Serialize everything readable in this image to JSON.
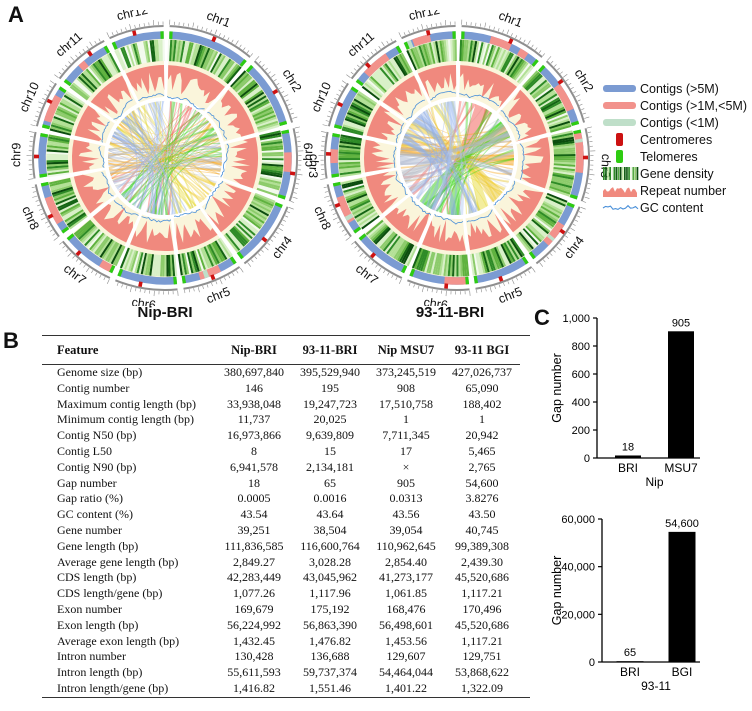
{
  "panels": {
    "a_label": "A",
    "b_label": "B",
    "c_label": "C"
  },
  "circos": {
    "chromosomes": [
      "chr1",
      "chr2",
      "chr3",
      "chr4",
      "chr5",
      "chr6",
      "chr7",
      "chr8",
      "chr9",
      "chr10",
      "chr11",
      "chr12"
    ],
    "plots": [
      {
        "title": "Nip-BRI"
      },
      {
        "title": "93-11-BRI"
      }
    ]
  },
  "legend": {
    "items": [
      {
        "name": "contigs-large",
        "label": "Contigs (>5M)",
        "color": "#7B9BD2",
        "swatch": "bar"
      },
      {
        "name": "contigs-medium",
        "label": "Contigs (>1M,<5M)",
        "color": "#F2928C",
        "swatch": "bar"
      },
      {
        "name": "contigs-small",
        "label": "Contigs (<1M)",
        "color": "#BFDFC9",
        "swatch": "bar"
      },
      {
        "name": "centromeres",
        "label": "Centromeres",
        "color": "#CC1111",
        "swatch": "vbar"
      },
      {
        "name": "telomeres",
        "label": "Telomeres",
        "color": "#2ECC11",
        "swatch": "vbar"
      },
      {
        "name": "gene-density",
        "label": "Gene density",
        "color": "#1E7A22",
        "swatch": "stripes"
      },
      {
        "name": "repeat-number",
        "label": "Repeat number",
        "color": "#F0897E",
        "swatch": "hist"
      },
      {
        "name": "gc-content",
        "label": "GC content",
        "color": "#4A90D9",
        "swatch": "wave"
      }
    ]
  },
  "table": {
    "columns": [
      "Feature",
      "Nip-BRI",
      "93-11-BRI",
      "Nip MSU7",
      "93-11 BGI"
    ],
    "rows": [
      [
        "Genome size (bp)",
        "380,697,840",
        "395,529,940",
        "373,245,519",
        "427,026,737"
      ],
      [
        "Contig number",
        "146",
        "195",
        "908",
        "65,090"
      ],
      [
        "Maximum contig length (bp)",
        "33,938,048",
        "19,247,723",
        "17,510,758",
        "188,402"
      ],
      [
        "Minimum contig length (bp)",
        "11,737",
        "20,025",
        "1",
        "1"
      ],
      [
        "Contig N50 (bp)",
        "16,973,866",
        "9,639,809",
        "7,711,345",
        "20,942"
      ],
      [
        "Contig L50",
        "8",
        "15",
        "17",
        "5,465"
      ],
      [
        "Contig N90 (bp)",
        "6,941,578",
        "2,134,181",
        "×",
        "2,765"
      ],
      [
        "Gap number",
        "18",
        "65",
        "905",
        "54,600"
      ],
      [
        "Gap ratio (%)",
        "0.0005",
        "0.0016",
        "0.0313",
        "3.8276"
      ],
      [
        "GC content (%)",
        "43.54",
        "43.64",
        "43.56",
        "43.50"
      ],
      [
        "Gene number",
        "39,251",
        "38,504",
        "39,054",
        "40,745"
      ],
      [
        "Gene length (bp)",
        "111,836,585",
        "116,600,764",
        "110,962,645",
        "99,389,308"
      ],
      [
        "Average gene length (bp)",
        "2,849.27",
        "3,028.28",
        "2,854.40",
        "2,439.30"
      ],
      [
        "CDS length (bp)",
        "42,283,449",
        "43,045,962",
        "41,273,177",
        "45,520,686"
      ],
      [
        "CDS length/gene (bp)",
        "1,077.26",
        "1,117.96",
        "1,061.85",
        "1,117.21"
      ],
      [
        "Exon number",
        "169,679",
        "175,192",
        "168,476",
        "170,496"
      ],
      [
        "Exon length (bp)",
        "56,224,992",
        "56,863,390",
        "56,498,601",
        "45,520,686"
      ],
      [
        "Average exon length (bp)",
        "1,432.45",
        "1,476.82",
        "1,453.56",
        "1,117.21"
      ],
      [
        "Intron number",
        "130,428",
        "136,688",
        "129,607",
        "129,751"
      ],
      [
        "Intron length (bp)",
        "55,611,593",
        "59,737,374",
        "54,464,044",
        "53,868,622"
      ],
      [
        "Intron length/gene (bp)",
        "1,416.82",
        "1,551.46",
        "1,401.22",
        "1,322.09"
      ]
    ]
  },
  "chart_data": [
    {
      "type": "bar",
      "categories": [
        "BRI",
        "MSU7"
      ],
      "values": [
        18,
        905
      ],
      "bar_labels": [
        "18",
        "905"
      ],
      "group_label": "Nip",
      "ylabel": "Gap number",
      "ylim": [
        0,
        1000
      ],
      "yticks": [
        0,
        200,
        400,
        600,
        800,
        1000
      ],
      "ytick_labels": [
        "0",
        "200",
        "400",
        "600",
        "800",
        "1,000"
      ],
      "bar_color": "#000000",
      "legend_position": "none",
      "grid": false
    },
    {
      "type": "bar",
      "categories": [
        "BRI",
        "BGI"
      ],
      "values": [
        65,
        54600
      ],
      "bar_labels": [
        "65",
        "54,600"
      ],
      "group_label": "93-11",
      "ylabel": "Gap number",
      "ylim": [
        0,
        60000
      ],
      "yticks": [
        0,
        20000,
        40000,
        60000
      ],
      "ytick_labels": [
        "0",
        "20,000",
        "40,000",
        "60,000"
      ],
      "bar_color": "#000000",
      "legend_position": "none",
      "grid": false
    }
  ]
}
